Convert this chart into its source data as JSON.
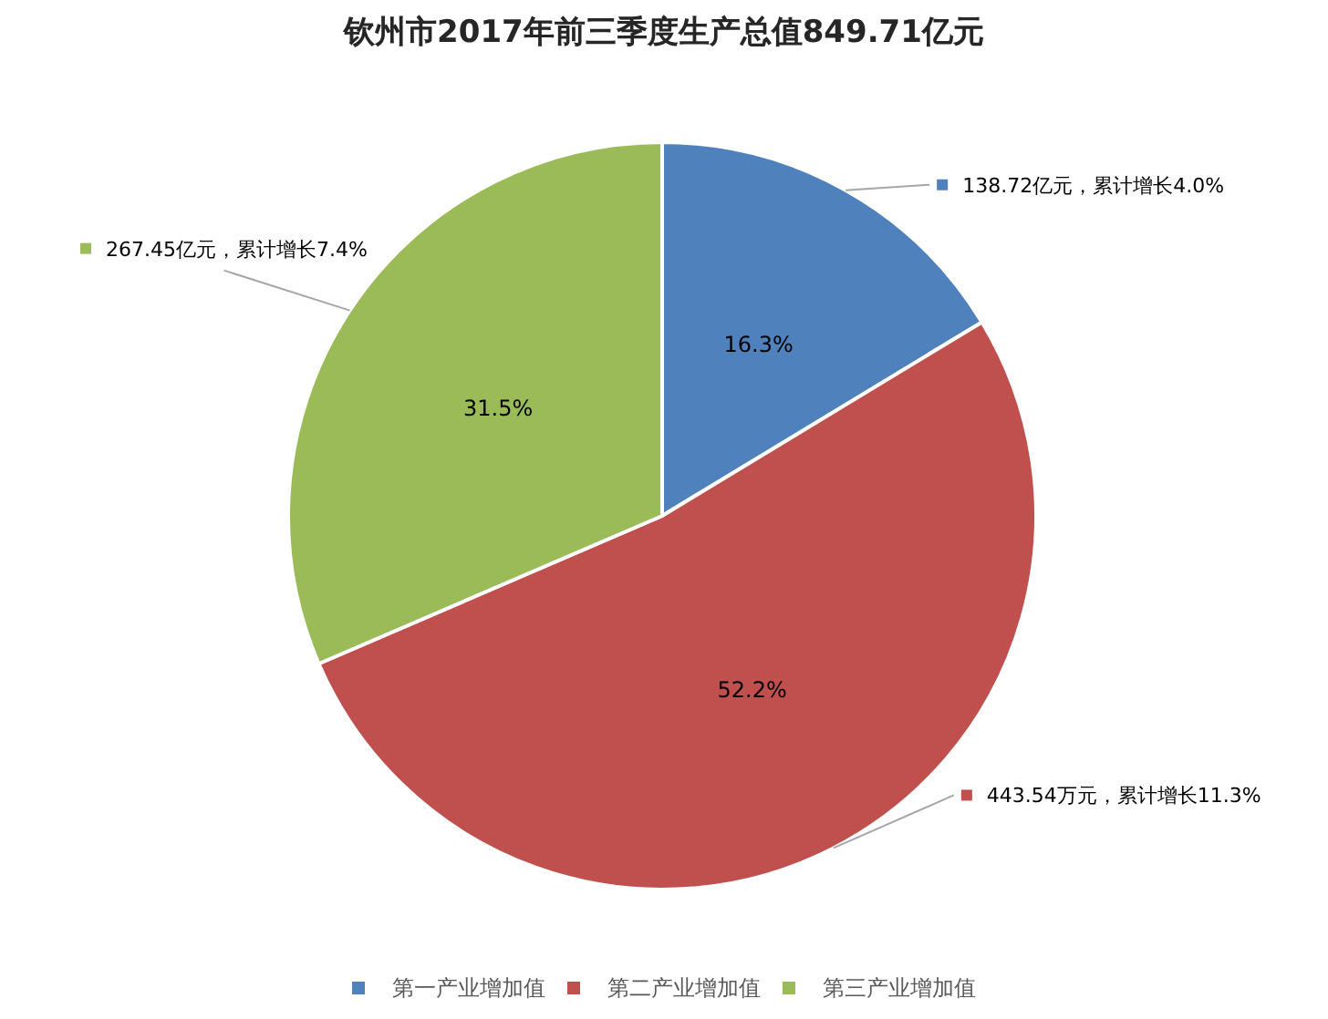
{
  "chart_data": {
    "type": "pie",
    "title": "钦州市2017年前三季度生产总值849.71亿元",
    "categories": [
      "第一产业增加值",
      "第二产业增加值",
      "第三产业增加值"
    ],
    "values": [
      138.72,
      443.54,
      267.45
    ],
    "colors": [
      "#4f81bd",
      "#c0504d",
      "#9bbb59"
    ],
    "value_labels": [
      "138.72亿元，累计增长4.0%",
      "443.54万元，累计增长11.3%",
      "267.45亿元，累计增长7.4%"
    ],
    "annotations": [
      {
        "text": "16.3%",
        "x": "第一产业增加值"
      },
      {
        "text": "52.2%",
        "x": "第二产业增加值"
      },
      {
        "text": "31.5%",
        "x": "第三产业增加值"
      }
    ],
    "legend": "bottom"
  }
}
